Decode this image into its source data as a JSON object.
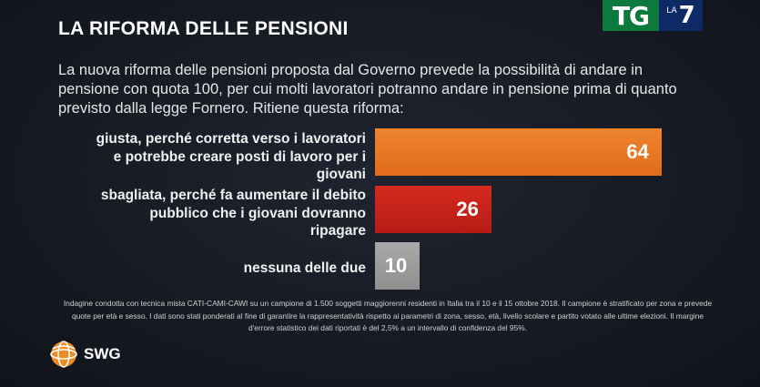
{
  "header": {
    "title": "LA RIFORMA DELLE PENSIONI",
    "logo_tg": "TG",
    "logo_la": "LA",
    "logo_seven": "7"
  },
  "question": "La nuova riforma delle pensioni proposta dal Governo prevede la possibilità di andare in pensione con quota 100, per cui molti lavoratori potranno andare in pensione prima di quanto previsto dalla legge Fornero. Ritiene questa riforma:",
  "chart_data": {
    "type": "bar",
    "orientation": "horizontal",
    "categories": [
      "giusta, perché corretta verso i lavoratori e potrebbe creare posti di lavoro per i giovani",
      "sbagliata, perché fa aumentare il debito pubblico che i giovani dovranno ripagare",
      "nessuna delle due"
    ],
    "values": [
      64,
      26,
      10
    ],
    "value_labels": [
      "64",
      "26",
      "10"
    ],
    "colors": [
      "#e87722",
      "#c8231a",
      "#9e9e9e"
    ],
    "xlim": [
      0,
      100
    ],
    "grid": false,
    "legend": "none"
  },
  "footnote": "Indagine condotta con tecnica mista CATI-CAMI-CAWI su un campione di 1.500 soggetti maggiorenni residenti in Italia tra il 10 e il 15 ottobre 2018. Il campione è stratificato per zona e prevede quote per età e sesso. I dati sono stati ponderati al fine di garantire la rappresentatività rispetto ai parametri di zona, sesso, età, livello scolare e partito votato alle ultime elezioni. Il margine d'errore statistico dei dati riportati è del 2,5% a un intervallo di confidenza del 95%.",
  "brand": {
    "name": "SWG",
    "icon": "swg-globe-icon",
    "accent": "#f08a24"
  }
}
